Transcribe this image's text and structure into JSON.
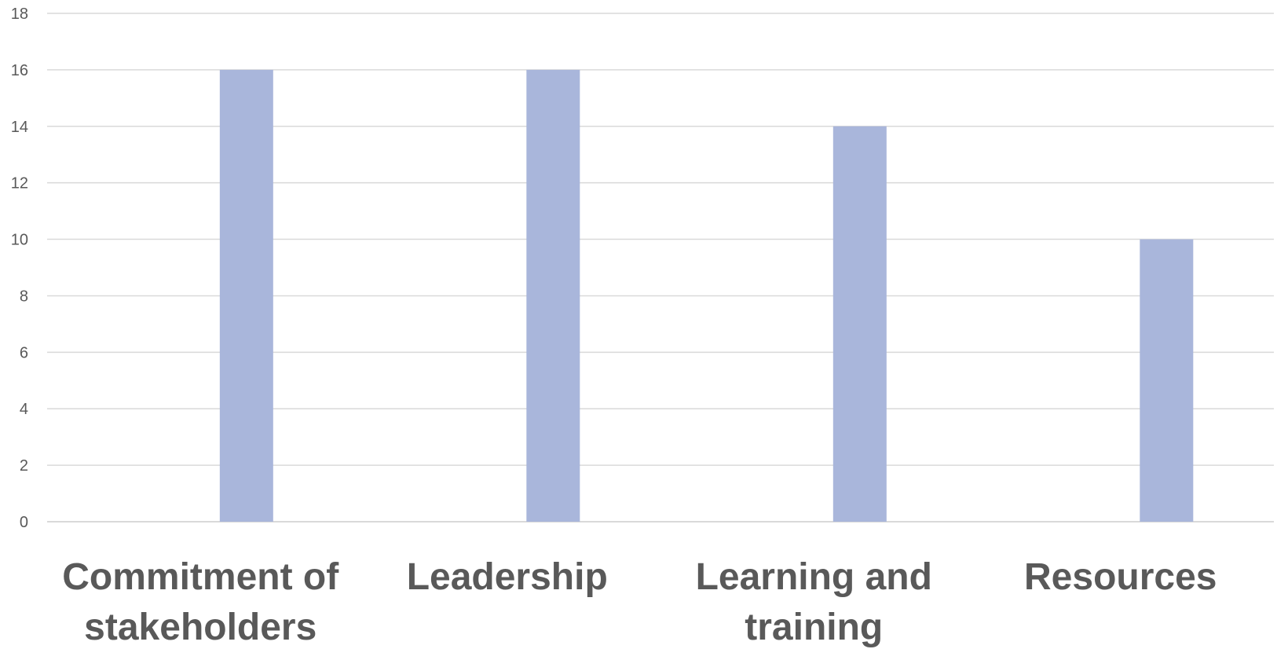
{
  "chart_data": {
    "type": "bar",
    "categories": [
      [
        "Commitment of",
        "stakeholders"
      ],
      [
        "Leadership"
      ],
      [
        "Learning and",
        "training"
      ],
      [
        "Resources"
      ]
    ],
    "values": [
      16,
      16,
      14,
      10
    ],
    "ylim": [
      0,
      18
    ],
    "yticks": [
      0,
      2,
      4,
      6,
      8,
      10,
      12,
      14,
      16,
      18
    ],
    "grid": true,
    "bar_color": "#a9b6db",
    "title": "",
    "xlabel": "",
    "ylabel": ""
  }
}
